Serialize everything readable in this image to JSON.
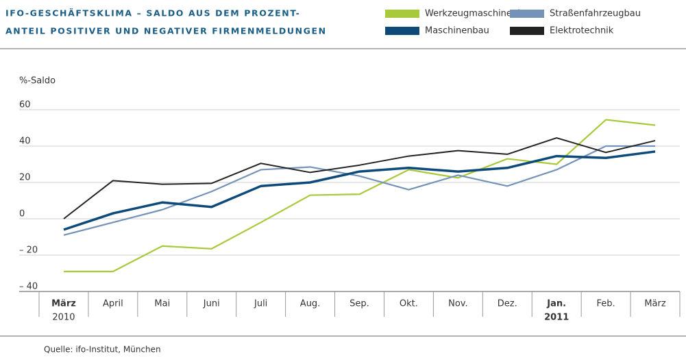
{
  "chart_data": {
    "type": "line",
    "title": [
      "IFO-GESCHÄFTSKLIMA – SALDO AUS DEM PROZENT-",
      "ANTEIL POSITIVER UND NEGATIVER FIRMENMELDUNGEN"
    ],
    "y_label": "%-Saldo",
    "source": "Quelle: ifo-Institut, München",
    "categories": [
      "März",
      "April",
      "Mai",
      "Juni",
      "Juli",
      "Aug.",
      "Sep.",
      "Okt.",
      "Nov.",
      "Dez.",
      "Jan.",
      "Feb.",
      "März"
    ],
    "category_sublabels": [
      "2010",
      null,
      null,
      null,
      null,
      null,
      null,
      null,
      null,
      null,
      "2011",
      null,
      null
    ],
    "ylim": [
      -40,
      60
    ],
    "yticks": [
      {
        "value": -40,
        "label": "– 40"
      },
      {
        "value": -20,
        "label": "– 20"
      },
      0,
      20,
      40,
      60
    ],
    "grid": true,
    "series": [
      {
        "name": "Werkzeugmaschinenbau",
        "color": "#a8c93a",
        "line_width": 2.2,
        "values": [
          -29,
          -29,
          -15,
          -16.5,
          -2,
          13,
          13.5,
          27,
          22.5,
          33,
          30,
          54.5,
          51.5
        ]
      },
      {
        "name": "Straßenfahrzeugbau",
        "color": "#7592b8",
        "line_width": 2.2,
        "values": [
          -9,
          -2,
          5,
          15,
          27,
          28.5,
          23.5,
          16,
          24,
          18,
          27,
          40,
          40
        ]
      },
      {
        "name": "Maschinenbau",
        "color": "#0d4a7a",
        "line_width": 3.5,
        "values": [
          -6,
          3,
          9,
          6.5,
          18,
          20,
          26,
          28,
          26,
          28,
          34.5,
          33.5,
          37
        ]
      },
      {
        "name": "Elektrotechnik",
        "color": "#222222",
        "line_width": 2,
        "values": [
          0,
          21,
          19,
          19.5,
          30.5,
          25.5,
          29.5,
          34.5,
          37.5,
          35.5,
          44.5,
          36.5,
          43
        ]
      }
    ]
  }
}
